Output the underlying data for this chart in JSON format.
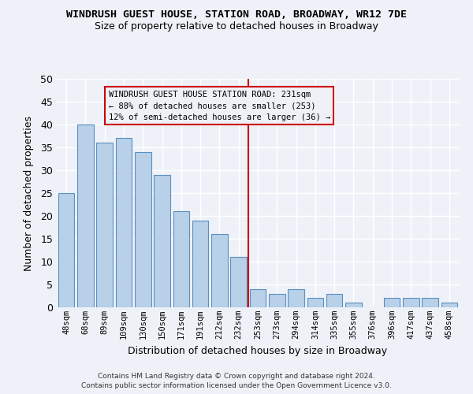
{
  "title": "WINDRUSH GUEST HOUSE, STATION ROAD, BROADWAY, WR12 7DE",
  "subtitle": "Size of property relative to detached houses in Broadway",
  "xlabel": "Distribution of detached houses by size in Broadway",
  "ylabel": "Number of detached properties",
  "categories": [
    "48sqm",
    "68sqm",
    "89sqm",
    "109sqm",
    "130sqm",
    "150sqm",
    "171sqm",
    "191sqm",
    "212sqm",
    "232sqm",
    "253sqm",
    "273sqm",
    "294sqm",
    "314sqm",
    "335sqm",
    "355sqm",
    "376sqm",
    "396sqm",
    "417sqm",
    "437sqm",
    "458sqm"
  ],
  "values": [
    25,
    40,
    36,
    37,
    34,
    29,
    21,
    19,
    16,
    11,
    4,
    3,
    4,
    2,
    3,
    1,
    0,
    2,
    2,
    2,
    1
  ],
  "bar_color": "#b8d0e8",
  "bar_edge_color": "#5a8fc0",
  "vline_x_idx": 9.5,
  "vline_color": "#cc0000",
  "annotation_line1": "WINDRUSH GUEST HOUSE STATION ROAD: 231sqm",
  "annotation_line2": "← 88% of detached houses are smaller (253)",
  "annotation_line3": "12% of semi-detached houses are larger (36) →",
  "ylim": [
    0,
    50
  ],
  "yticks": [
    0,
    5,
    10,
    15,
    20,
    25,
    30,
    35,
    40,
    45,
    50
  ],
  "footer_line1": "Contains HM Land Registry data © Crown copyright and database right 2024.",
  "footer_line2": "Contains public sector information licensed under the Open Government Licence v3.0.",
  "bg_color": "#eef2f8",
  "grid_color": "#ffffff"
}
